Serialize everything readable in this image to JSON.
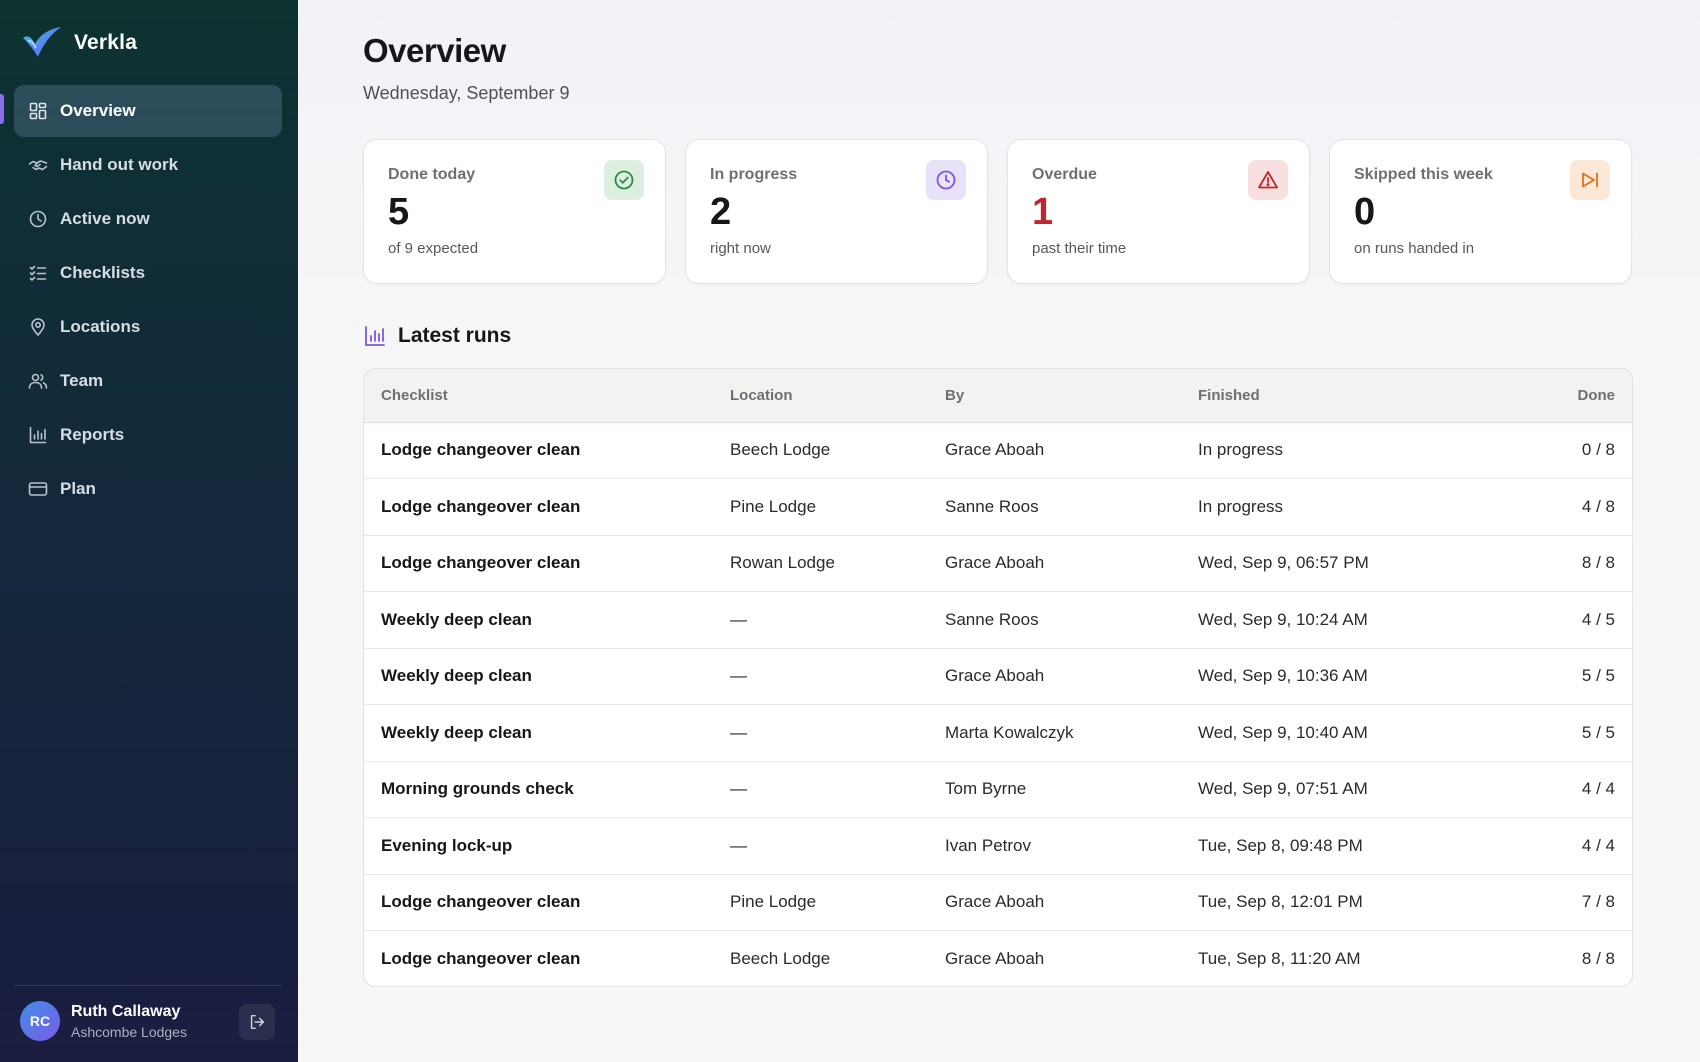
{
  "brand": {
    "name": "Verkla"
  },
  "nav": [
    {
      "label": "Overview",
      "icon": "grid-icon",
      "active": true
    },
    {
      "label": "Hand out work",
      "icon": "handshake-icon"
    },
    {
      "label": "Active now",
      "icon": "clock-icon"
    },
    {
      "label": "Checklists",
      "icon": "checklist-icon"
    },
    {
      "label": "Locations",
      "icon": "map-pin-icon"
    },
    {
      "label": "Team",
      "icon": "users-icon"
    },
    {
      "label": "Reports",
      "icon": "bar-chart-icon"
    },
    {
      "label": "Plan",
      "icon": "credit-card-icon"
    }
  ],
  "user": {
    "initials": "RC",
    "name": "Ruth Callaway",
    "org": "Ashcombe Lodges"
  },
  "page": {
    "title": "Overview",
    "date": "Wednesday, September 9"
  },
  "cards": [
    {
      "label": "Done today",
      "value": "5",
      "sub": "of 9 expected",
      "icon": "check-circle-icon",
      "color": "#2e8b47"
    },
    {
      "label": "In progress",
      "value": "2",
      "sub": "right now",
      "icon": "clock-icon",
      "color": "#7b55e0"
    },
    {
      "label": "Overdue",
      "value": "1",
      "sub": "past their time",
      "icon": "alert-triangle-icon",
      "color": "#c0262d"
    },
    {
      "label": "Skipped this week",
      "value": "0",
      "sub": "on runs handed in",
      "icon": "skip-forward-icon",
      "color": "#d9741e"
    }
  ],
  "runs": {
    "title": "Latest runs",
    "columns": [
      "Checklist",
      "Location",
      "By",
      "Finished",
      "Done"
    ],
    "rows": [
      [
        "Lodge changeover clean",
        "Beech Lodge",
        "Grace Aboah",
        "In progress",
        "0 / 8"
      ],
      [
        "Lodge changeover clean",
        "Pine Lodge",
        "Sanne Roos",
        "In progress",
        "4 / 8"
      ],
      [
        "Lodge changeover clean",
        "Rowan Lodge",
        "Grace Aboah",
        "Wed, Sep 9, 06:57 PM",
        "8 / 8"
      ],
      [
        "Weekly deep clean",
        "—",
        "Sanne Roos",
        "Wed, Sep 9, 10:24 AM",
        "4 / 5"
      ],
      [
        "Weekly deep clean",
        "—",
        "Grace Aboah",
        "Wed, Sep 9, 10:36 AM",
        "5 / 5"
      ],
      [
        "Weekly deep clean",
        "—",
        "Marta Kowalczyk",
        "Wed, Sep 9, 10:40 AM",
        "5 / 5"
      ],
      [
        "Morning grounds check",
        "—",
        "Tom Byrne",
        "Wed, Sep 9, 07:51 AM",
        "4 / 4"
      ],
      [
        "Evening lock-up",
        "—",
        "Ivan Petrov",
        "Tue, Sep 8, 09:48 PM",
        "4 / 4"
      ],
      [
        "Lodge changeover clean",
        "Pine Lodge",
        "Grace Aboah",
        "Tue, Sep 8, 12:01 PM",
        "7 / 8"
      ],
      [
        "Lodge changeover clean",
        "Beech Lodge",
        "Grace Aboah",
        "Tue, Sep 8, 11:20 AM",
        "8 / 8"
      ]
    ]
  },
  "colors": {
    "accent": "#8b6cf0",
    "sidebar_top": "#0c3330",
    "sidebar_bottom": "#1a1d40",
    "overdue": "#c0262d"
  }
}
